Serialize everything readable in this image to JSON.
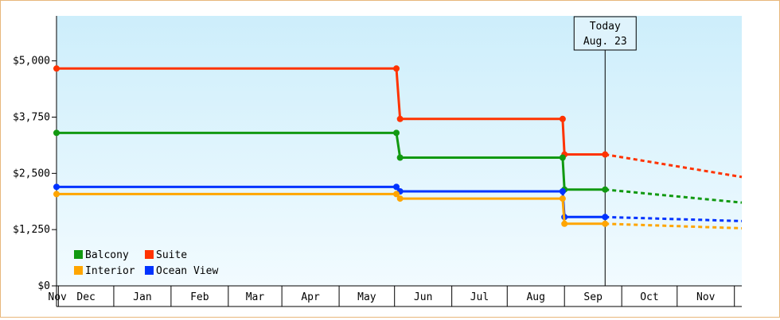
{
  "chart_data": {
    "type": "line",
    "style": "step",
    "title": "",
    "xlabel": "",
    "ylabel": "",
    "ylim": [
      0,
      6000
    ],
    "y_ticks": [
      0,
      1250,
      2500,
      3750,
      5000
    ],
    "y_tick_labels": [
      "$0",
      "$1,250",
      "$2,500",
      "$3,750",
      "$5,000"
    ],
    "x_ticks": [
      "Nov",
      "Dec",
      "Jan",
      "Feb",
      "Mar",
      "Apr",
      "May",
      "Jun",
      "Jul",
      "Aug",
      "Sep",
      "Oct",
      "Nov"
    ],
    "x_axis_start": "2023-10-31",
    "x_axis_end": "2024-11-05",
    "grid": false,
    "legend_position": "bottom-left",
    "today_marker": {
      "date": "2024-08-23",
      "line1": "Today",
      "line2": "Aug. 23"
    },
    "series": [
      {
        "name": "Suite",
        "color": "#ff3300",
        "points": [
          {
            "date": "2023-10-31",
            "value": 4830
          },
          {
            "date": "2024-05-02",
            "value": 4830
          },
          {
            "date": "2024-05-04",
            "value": 3710
          },
          {
            "date": "2024-07-31",
            "value": 3710
          },
          {
            "date": "2024-08-01",
            "value": 2920
          },
          {
            "date": "2024-08-23",
            "value": 2920
          }
        ],
        "projection": [
          {
            "date": "2024-08-23",
            "value": 2920
          },
          {
            "date": "2024-11-05",
            "value": 2420
          }
        ]
      },
      {
        "name": "Balcony",
        "color": "#119911",
        "points": [
          {
            "date": "2023-10-31",
            "value": 3400
          },
          {
            "date": "2024-05-02",
            "value": 3400
          },
          {
            "date": "2024-05-04",
            "value": 2850
          },
          {
            "date": "2024-07-31",
            "value": 2850
          },
          {
            "date": "2024-08-01",
            "value": 2140
          },
          {
            "date": "2024-08-23",
            "value": 2140
          }
        ],
        "projection": [
          {
            "date": "2024-08-23",
            "value": 2140
          },
          {
            "date": "2024-11-05",
            "value": 1850
          }
        ]
      },
      {
        "name": "Ocean View",
        "color": "#0033ff",
        "points": [
          {
            "date": "2023-10-31",
            "value": 2200
          },
          {
            "date": "2024-05-02",
            "value": 2200
          },
          {
            "date": "2024-05-04",
            "value": 2100
          },
          {
            "date": "2024-07-31",
            "value": 2100
          },
          {
            "date": "2024-08-01",
            "value": 1530
          },
          {
            "date": "2024-08-23",
            "value": 1530
          }
        ],
        "projection": [
          {
            "date": "2024-08-23",
            "value": 1530
          },
          {
            "date": "2024-11-05",
            "value": 1440
          }
        ]
      },
      {
        "name": "Interior",
        "color": "#ffa500",
        "points": [
          {
            "date": "2023-10-31",
            "value": 2040
          },
          {
            "date": "2024-05-02",
            "value": 2040
          },
          {
            "date": "2024-05-04",
            "value": 1940
          },
          {
            "date": "2024-07-31",
            "value": 1940
          },
          {
            "date": "2024-08-01",
            "value": 1380
          },
          {
            "date": "2024-08-23",
            "value": 1380
          }
        ],
        "projection": [
          {
            "date": "2024-08-23",
            "value": 1380
          },
          {
            "date": "2024-11-05",
            "value": 1280
          }
        ]
      }
    ],
    "legend_order": [
      "Balcony",
      "Suite",
      "Interior",
      "Ocean View"
    ],
    "colors": {
      "background_top": "#cdeefb",
      "background_bottom": "#f2fbff",
      "frame_border": "#e8b77b",
      "axis": "#000000"
    }
  }
}
